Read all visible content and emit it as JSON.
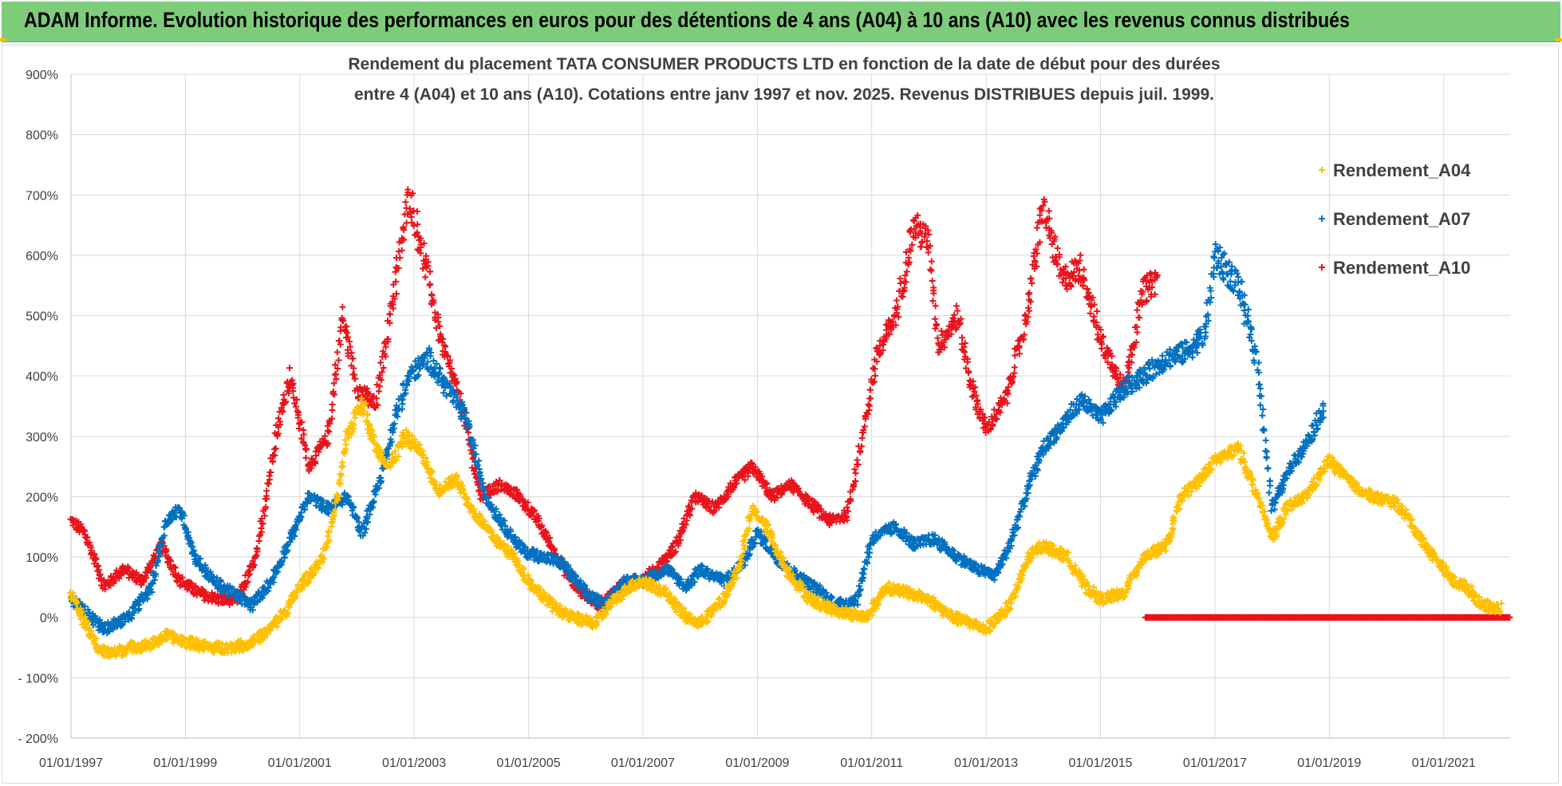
{
  "banner": {
    "title": "ADAM Informe. Evolution historique des performances en euros pour des détentions de 4 ans (A04) à 10 ans (A10) avec les revenus connus distribués"
  },
  "colors": {
    "banner_bg": "#7dcc7a",
    "A04": "#ffc000",
    "A07": "#0070c0",
    "A10": "#e8141c",
    "grid": "#d9d9d9",
    "corner_accent": "#f2c200"
  },
  "chart_data": {
    "type": "scatter",
    "title_lines": [
      "Rendement du placement TATA CONSUMER PRODUCTS LTD en fonction de la date de début pour des durées",
      "entre 4 (A04) et 10 ans (A10).  Cotations entre janv 1997 et nov. 2025. Revenus DISTRIBUES depuis juil. 1999."
    ],
    "xlabel": "",
    "ylabel": "",
    "x_axis": {
      "type": "date",
      "range": [
        "1997-01-01",
        "2022-03-01"
      ],
      "tick_labels": [
        "01/01/1997",
        "01/01/1999",
        "01/01/2001",
        "01/01/2003",
        "01/01/2005",
        "01/01/2007",
        "01/01/2009",
        "01/01/2011",
        "01/01/2013",
        "01/01/2015",
        "01/01/2017",
        "01/01/2019",
        "01/01/2021"
      ]
    },
    "y_axis": {
      "range": [
        -200,
        900
      ],
      "unit": "%",
      "tick_labels": [
        "- 200%",
        "- 100%",
        "0%",
        "100%",
        "200%",
        "300%",
        "400%",
        "500%",
        "600%",
        "700%",
        "800%",
        "900%"
      ]
    },
    "grid": true,
    "marker": "+",
    "legend": {
      "placement": "right",
      "entries": [
        "Rendement_A04",
        "Rendement_A07",
        "Rendement_A10"
      ]
    },
    "series": [
      {
        "name": "Rendement_A04",
        "color": "#ffc000",
        "points": [
          [
            "1997-01-01",
            40
          ],
          [
            "1997-04-01",
            -10
          ],
          [
            "1997-07-01",
            -55
          ],
          [
            "1997-10-01",
            -60
          ],
          [
            "1998-01-01",
            -50
          ],
          [
            "1998-06-01",
            -45
          ],
          [
            "1998-09-01",
            -30
          ],
          [
            "1999-01-01",
            -40
          ],
          [
            "1999-06-01",
            -50
          ],
          [
            "1999-10-01",
            -50
          ],
          [
            "2000-02-01",
            -45
          ],
          [
            "2000-06-01",
            -25
          ],
          [
            "2000-10-01",
            10
          ],
          [
            "2001-01-01",
            50
          ],
          [
            "2001-06-01",
            100
          ],
          [
            "2001-09-01",
            200
          ],
          [
            "2001-11-01",
            300
          ],
          [
            "2002-02-01",
            360
          ],
          [
            "2002-05-01",
            280
          ],
          [
            "2002-08-01",
            250
          ],
          [
            "2002-11-01",
            300
          ],
          [
            "2003-02-01",
            280
          ],
          [
            "2003-06-01",
            210
          ],
          [
            "2003-10-01",
            230
          ],
          [
            "2004-01-01",
            180
          ],
          [
            "2004-06-01",
            130
          ],
          [
            "2004-10-01",
            100
          ],
          [
            "2005-01-01",
            60
          ],
          [
            "2005-06-01",
            20
          ],
          [
            "2005-10-01",
            0
          ],
          [
            "2006-03-01",
            -10
          ],
          [
            "2006-06-01",
            20
          ],
          [
            "2006-10-01",
            50
          ],
          [
            "2007-01-01",
            60
          ],
          [
            "2007-06-01",
            40
          ],
          [
            "2007-10-01",
            0
          ],
          [
            "2008-01-01",
            -10
          ],
          [
            "2008-06-01",
            30
          ],
          [
            "2008-09-01",
            80
          ],
          [
            "2008-12-01",
            180
          ],
          [
            "2009-03-01",
            150
          ],
          [
            "2009-07-01",
            80
          ],
          [
            "2009-12-01",
            30
          ],
          [
            "2010-06-01",
            10
          ],
          [
            "2010-12-01",
            0
          ],
          [
            "2011-04-01",
            50
          ],
          [
            "2011-09-01",
            40
          ],
          [
            "2012-01-01",
            30
          ],
          [
            "2012-06-01",
            0
          ],
          [
            "2012-10-01",
            -10
          ],
          [
            "2013-01-01",
            -20
          ],
          [
            "2013-06-01",
            20
          ],
          [
            "2013-10-01",
            100
          ],
          [
            "2014-01-01",
            120
          ],
          [
            "2014-06-01",
            100
          ],
          [
            "2014-10-01",
            50
          ],
          [
            "2015-01-01",
            30
          ],
          [
            "2015-06-01",
            40
          ],
          [
            "2015-10-01",
            100
          ],
          [
            "2016-03-01",
            120
          ],
          [
            "2016-06-01",
            200
          ],
          [
            "2016-10-01",
            230
          ],
          [
            "2017-01-01",
            260
          ],
          [
            "2017-06-01",
            280
          ],
          [
            "2017-10-01",
            200
          ],
          [
            "2018-01-01",
            130
          ],
          [
            "2018-04-01",
            180
          ],
          [
            "2018-08-01",
            200
          ],
          [
            "2019-01-01",
            260
          ],
          [
            "2019-06-01",
            220
          ],
          [
            "2019-10-01",
            200
          ],
          [
            "2020-03-01",
            190
          ],
          [
            "2020-06-01",
            160
          ],
          [
            "2020-09-01",
            120
          ],
          [
            "2020-12-01",
            90
          ],
          [
            "2021-03-01",
            60
          ],
          [
            "2021-06-01",
            50
          ],
          [
            "2021-09-01",
            20
          ],
          [
            "2022-01-01",
            15
          ]
        ]
      },
      {
        "name": "Rendement_A07",
        "color": "#0070c0",
        "points": [
          [
            "1997-01-01",
            30
          ],
          [
            "1997-04-01",
            10
          ],
          [
            "1997-08-01",
            -20
          ],
          [
            "1998-01-01",
            0
          ],
          [
            "1998-06-01",
            50
          ],
          [
            "1998-09-01",
            160
          ],
          [
            "1998-12-01",
            180
          ],
          [
            "1999-03-01",
            100
          ],
          [
            "1999-07-01",
            60
          ],
          [
            "1999-11-01",
            40
          ],
          [
            "2000-03-01",
            20
          ],
          [
            "2000-07-01",
            60
          ],
          [
            "2000-11-01",
            130
          ],
          [
            "2001-03-01",
            200
          ],
          [
            "2001-07-01",
            180
          ],
          [
            "2001-11-01",
            200
          ],
          [
            "2002-02-01",
            140
          ],
          [
            "2002-06-01",
            230
          ],
          [
            "2002-09-01",
            330
          ],
          [
            "2002-12-01",
            400
          ],
          [
            "2003-04-01",
            430
          ],
          [
            "2003-08-01",
            380
          ],
          [
            "2003-12-01",
            330
          ],
          [
            "2004-04-01",
            200
          ],
          [
            "2004-08-01",
            150
          ],
          [
            "2004-12-01",
            110
          ],
          [
            "2005-04-01",
            100
          ],
          [
            "2005-08-01",
            90
          ],
          [
            "2006-01-01",
            40
          ],
          [
            "2006-05-01",
            20
          ],
          [
            "2006-09-01",
            60
          ],
          [
            "2007-01-01",
            60
          ],
          [
            "2007-06-01",
            80
          ],
          [
            "2007-10-01",
            50
          ],
          [
            "2008-01-01",
            80
          ],
          [
            "2008-06-01",
            60
          ],
          [
            "2008-10-01",
            90
          ],
          [
            "2009-01-01",
            140
          ],
          [
            "2009-05-01",
            100
          ],
          [
            "2009-09-01",
            70
          ],
          [
            "2010-01-01",
            50
          ],
          [
            "2010-06-01",
            20
          ],
          [
            "2010-10-01",
            30
          ],
          [
            "2011-01-01",
            130
          ],
          [
            "2011-06-01",
            150
          ],
          [
            "2011-10-01",
            120
          ],
          [
            "2012-02-01",
            130
          ],
          [
            "2012-07-01",
            100
          ],
          [
            "2012-11-01",
            80
          ],
          [
            "2013-03-01",
            70
          ],
          [
            "2013-06-01",
            120
          ],
          [
            "2013-10-01",
            220
          ],
          [
            "2014-01-01",
            280
          ],
          [
            "2014-05-01",
            320
          ],
          [
            "2014-09-01",
            360
          ],
          [
            "2015-01-01",
            330
          ],
          [
            "2015-06-01",
            380
          ],
          [
            "2015-10-01",
            400
          ],
          [
            "2016-03-01",
            430
          ],
          [
            "2016-07-01",
            440
          ],
          [
            "2016-11-01",
            470
          ],
          [
            "2017-01-01",
            600
          ],
          [
            "2017-06-01",
            550
          ],
          [
            "2017-10-01",
            420
          ],
          [
            "2018-01-01",
            180
          ],
          [
            "2018-05-01",
            250
          ],
          [
            "2018-09-01",
            300
          ],
          [
            "2018-12-01",
            350
          ]
        ]
      },
      {
        "name": "Rendement_A10",
        "color": "#e8141c",
        "points": [
          [
            "1997-01-01",
            160
          ],
          [
            "1997-04-01",
            140
          ],
          [
            "1997-08-01",
            50
          ],
          [
            "1997-12-01",
            80
          ],
          [
            "1998-04-01",
            60
          ],
          [
            "1998-08-01",
            120
          ],
          [
            "1998-12-01",
            60
          ],
          [
            "1999-04-01",
            40
          ],
          [
            "1999-08-01",
            30
          ],
          [
            "1999-12-01",
            30
          ],
          [
            "2000-04-01",
            100
          ],
          [
            "2000-08-01",
            300
          ],
          [
            "2000-11-01",
            400
          ],
          [
            "2001-03-01",
            250
          ],
          [
            "2001-07-01",
            300
          ],
          [
            "2001-10-01",
            500
          ],
          [
            "2002-01-01",
            380
          ],
          [
            "2002-05-01",
            350
          ],
          [
            "2002-09-01",
            550
          ],
          [
            "2002-12-01",
            700
          ],
          [
            "2003-03-01",
            600
          ],
          [
            "2003-07-01",
            450
          ],
          [
            "2003-11-01",
            350
          ],
          [
            "2004-03-01",
            200
          ],
          [
            "2004-07-01",
            220
          ],
          [
            "2004-11-01",
            200
          ],
          [
            "2005-03-01",
            160
          ],
          [
            "2005-07-01",
            100
          ],
          [
            "2005-11-01",
            50
          ],
          [
            "2006-04-01",
            20
          ],
          [
            "2006-08-01",
            50
          ],
          [
            "2006-12-01",
            60
          ],
          [
            "2007-04-01",
            80
          ],
          [
            "2007-08-01",
            120
          ],
          [
            "2007-12-01",
            200
          ],
          [
            "2008-04-01",
            180
          ],
          [
            "2008-08-01",
            220
          ],
          [
            "2008-12-01",
            250
          ],
          [
            "2009-04-01",
            200
          ],
          [
            "2009-08-01",
            220
          ],
          [
            "2009-12-01",
            190
          ],
          [
            "2010-04-01",
            160
          ],
          [
            "2010-08-01",
            170
          ],
          [
            "2010-11-01",
            300
          ],
          [
            "2011-02-01",
            430
          ],
          [
            "2011-06-01",
            500
          ],
          [
            "2011-10-01",
            650
          ],
          [
            "2012-01-01",
            620
          ],
          [
            "2012-03-01",
            450
          ],
          [
            "2012-07-01",
            500
          ],
          [
            "2012-10-01",
            380
          ],
          [
            "2013-01-01",
            310
          ],
          [
            "2013-05-01",
            360
          ],
          [
            "2013-09-01",
            480
          ],
          [
            "2014-01-01",
            680
          ],
          [
            "2014-05-01",
            560
          ],
          [
            "2014-09-01",
            580
          ],
          [
            "2015-01-01",
            460
          ],
          [
            "2015-06-01",
            380
          ],
          [
            "2015-10-01",
            540
          ],
          [
            "2016-01-01",
            560
          ]
        ],
        "flat_zero_from": "2015-10-15",
        "flat_zero_to": "2022-03-01"
      }
    ]
  }
}
